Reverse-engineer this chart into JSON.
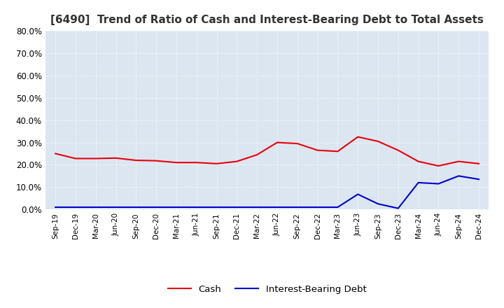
{
  "title": "[6490]  Trend of Ratio of Cash and Interest-Bearing Debt to Total Assets",
  "title_fontsize": 11,
  "ylim": [
    0.0,
    0.8
  ],
  "yticks": [
    0.0,
    0.1,
    0.2,
    0.3,
    0.4,
    0.5,
    0.6,
    0.7,
    0.8
  ],
  "x_labels": [
    "Sep-19",
    "Dec-19",
    "Mar-20",
    "Jun-20",
    "Sep-20",
    "Dec-20",
    "Mar-21",
    "Jun-21",
    "Sep-21",
    "Dec-21",
    "Mar-22",
    "Jun-22",
    "Sep-22",
    "Dec-22",
    "Mar-23",
    "Jun-23",
    "Sep-23",
    "Dec-23",
    "Mar-24",
    "Jun-24",
    "Sep-24",
    "Dec-24"
  ],
  "cash": [
    0.25,
    0.228,
    0.228,
    0.23,
    0.22,
    0.218,
    0.21,
    0.21,
    0.205,
    0.215,
    0.245,
    0.3,
    0.295,
    0.265,
    0.26,
    0.325,
    0.305,
    0.265,
    0.215,
    0.195,
    0.215,
    0.205
  ],
  "interest_bearing_debt": [
    0.01,
    0.01,
    0.01,
    0.01,
    0.01,
    0.01,
    0.01,
    0.01,
    0.01,
    0.01,
    0.01,
    0.01,
    0.01,
    0.01,
    0.01,
    0.068,
    0.025,
    0.005,
    0.12,
    0.115,
    0.15,
    0.135
  ],
  "cash_color": "#e8000d",
  "debt_color": "#0000cc",
  "background_color": "#ffffff",
  "plot_bg_color": "#dce6f0",
  "grid_color": "#ffffff",
  "legend_labels": [
    "Cash",
    "Interest-Bearing Debt"
  ]
}
